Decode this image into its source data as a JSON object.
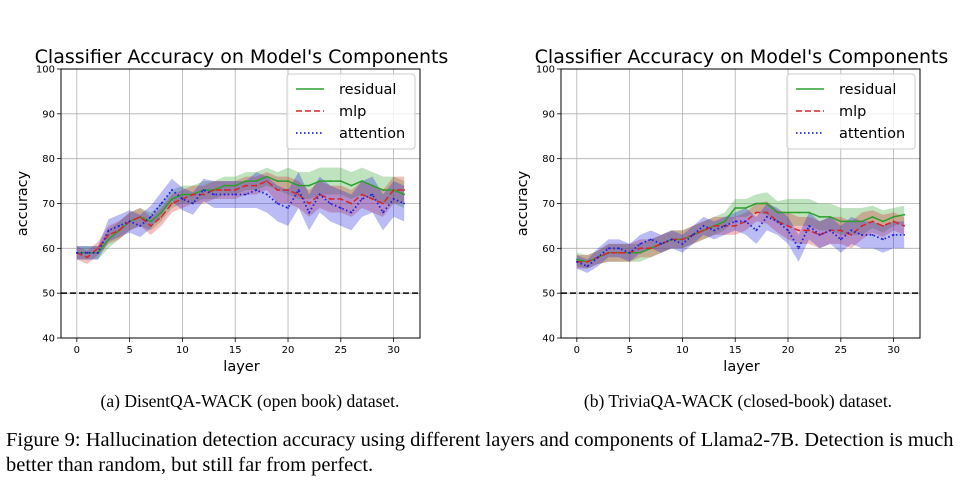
{
  "chart_data": [
    {
      "type": "line",
      "title": "Classifier Accuracy on Model's Components",
      "xlabel": "layer",
      "ylabel": "accuracy",
      "xlim": [
        -1.5,
        32.5
      ],
      "ylim": [
        40,
        100
      ],
      "xticks": [
        0,
        5,
        10,
        15,
        20,
        25,
        30
      ],
      "yticks": [
        40,
        50,
        60,
        70,
        80,
        90,
        100
      ],
      "grid": true,
      "legend_position": "top-right",
      "baseline": 50,
      "x": [
        0,
        1,
        2,
        3,
        4,
        5,
        6,
        7,
        8,
        9,
        10,
        11,
        12,
        13,
        14,
        15,
        16,
        17,
        18,
        19,
        20,
        21,
        22,
        23,
        24,
        25,
        26,
        27,
        28,
        29,
        30,
        31
      ],
      "series": [
        {
          "name": "residual",
          "color": "#2ca02c",
          "style": "solid",
          "values": [
            59,
            59,
            59,
            62,
            64,
            66,
            67,
            66,
            68,
            71,
            72,
            72,
            73,
            73,
            74,
            74,
            75,
            75,
            76,
            75,
            75,
            74,
            74,
            75,
            75,
            75,
            74,
            75,
            74,
            73,
            73,
            72
          ],
          "band": [
            1.5,
            1.5,
            1.5,
            2,
            2,
            2,
            2,
            2,
            2,
            2,
            2,
            2,
            2,
            2,
            2,
            2,
            2,
            2,
            2,
            2,
            3,
            3,
            3,
            3,
            3,
            3,
            3,
            3,
            3,
            3,
            3,
            3
          ]
        },
        {
          "name": "mlp",
          "color": "#d62728",
          "style": "dashed",
          "values": [
            59,
            58,
            60,
            63,
            64,
            66,
            67,
            65,
            67,
            70,
            71,
            72,
            72,
            73,
            73,
            73,
            74,
            74,
            75,
            73,
            73,
            72,
            70,
            72,
            71,
            71,
            70,
            72,
            71,
            70,
            73,
            73
          ],
          "band": [
            1.5,
            1.5,
            1.5,
            2,
            2,
            2,
            2,
            2,
            2,
            2,
            2,
            2,
            2,
            2,
            2,
            2,
            2,
            2,
            2,
            3,
            3,
            3,
            3,
            3,
            3,
            3,
            3,
            3,
            3,
            3,
            3,
            3
          ]
        },
        {
          "name": "attention",
          "color": "#1f1fdd",
          "style": "dotted",
          "values": [
            59,
            59,
            59,
            64,
            65,
            66,
            65,
            67,
            70,
            73,
            71,
            70,
            73,
            72,
            72,
            72,
            72,
            73,
            72,
            70,
            69,
            73,
            68,
            72,
            70,
            69,
            68,
            71,
            72,
            68,
            71,
            70
          ],
          "band": [
            1.5,
            1.5,
            1.5,
            2.5,
            2.5,
            2.5,
            2.5,
            2.5,
            2.5,
            2.5,
            2.5,
            2.5,
            2.5,
            3,
            3,
            3,
            3,
            4,
            4,
            4,
            4,
            4,
            4,
            4,
            4,
            4,
            4,
            4,
            4,
            4,
            4,
            4
          ]
        }
      ]
    },
    {
      "type": "line",
      "title": "Classifier Accuracy on Model's Components",
      "xlabel": "layer",
      "ylabel": "accuracy",
      "xlim": [
        -1.5,
        32.5
      ],
      "ylim": [
        40,
        100
      ],
      "xticks": [
        0,
        5,
        10,
        15,
        20,
        25,
        30
      ],
      "yticks": [
        40,
        50,
        60,
        70,
        80,
        90,
        100
      ],
      "grid": true,
      "legend_position": "top-right",
      "baseline": 50,
      "x": [
        0,
        1,
        2,
        3,
        4,
        5,
        6,
        7,
        8,
        9,
        10,
        11,
        12,
        13,
        14,
        15,
        16,
        17,
        18,
        19,
        20,
        21,
        22,
        23,
        24,
        25,
        26,
        27,
        28,
        29,
        30,
        31
      ],
      "series": [
        {
          "name": "residual",
          "color": "#2ca02c",
          "style": "solid",
          "values": [
            57.5,
            57,
            58,
            59,
            59,
            59,
            59,
            60,
            61,
            62,
            62,
            63,
            64,
            65,
            66,
            69,
            69,
            70,
            70,
            68,
            68,
            68,
            68,
            67,
            67,
            66,
            66,
            66,
            67,
            66,
            67,
            67.5
          ],
          "band": [
            1.5,
            1.5,
            1.5,
            2,
            2,
            2,
            2,
            2,
            2,
            2,
            2,
            2,
            2,
            2,
            2,
            2,
            2,
            2,
            2.5,
            2.5,
            3,
            3,
            3,
            3,
            3,
            3,
            3,
            3,
            2.5,
            2.5,
            2,
            2
          ]
        },
        {
          "name": "mlp",
          "color": "#d62728",
          "style": "dashed",
          "values": [
            57,
            57,
            58,
            59,
            59,
            59,
            60,
            60,
            61,
            62,
            62,
            63,
            64,
            65,
            65,
            65,
            66,
            68,
            68,
            66,
            65,
            64,
            64,
            63,
            64,
            64,
            63,
            65,
            66,
            65,
            66,
            65
          ],
          "band": [
            1.5,
            1.5,
            1.5,
            2,
            2,
            2,
            2,
            2,
            2,
            2,
            2,
            2,
            2,
            2,
            2,
            2,
            2,
            2,
            2.5,
            2.5,
            3,
            3,
            3,
            3,
            3,
            3,
            3,
            3,
            2.5,
            2.5,
            2,
            2
          ]
        },
        {
          "name": "attention",
          "color": "#1f1fdd",
          "style": "dotted",
          "values": [
            57,
            56,
            58,
            60,
            60,
            59,
            61,
            62,
            61,
            62,
            61,
            63,
            65,
            64,
            65,
            66,
            66,
            64,
            67,
            66,
            64,
            60,
            65,
            63,
            64,
            62,
            64,
            63,
            63,
            62,
            63,
            63
          ],
          "band": [
            1.5,
            1.5,
            2,
            2,
            2,
            2,
            2,
            2,
            2,
            2,
            2,
            2,
            2,
            2,
            2,
            2,
            3,
            3,
            3,
            3,
            3,
            3,
            3,
            3,
            3,
            3,
            3,
            3,
            3,
            3,
            3,
            3
          ]
        }
      ]
    }
  ],
  "captions": {
    "subcaption_a": "(a) DisentQA-WACK (open book) dataset.",
    "subcaption_b": "(b) TriviaQA-WACK (closed-book) dataset.",
    "figure": "Figure 9: Hallucination detection accuracy using different layers and components of Llama2-7B. Detection is much better than random, but still far from perfect."
  }
}
